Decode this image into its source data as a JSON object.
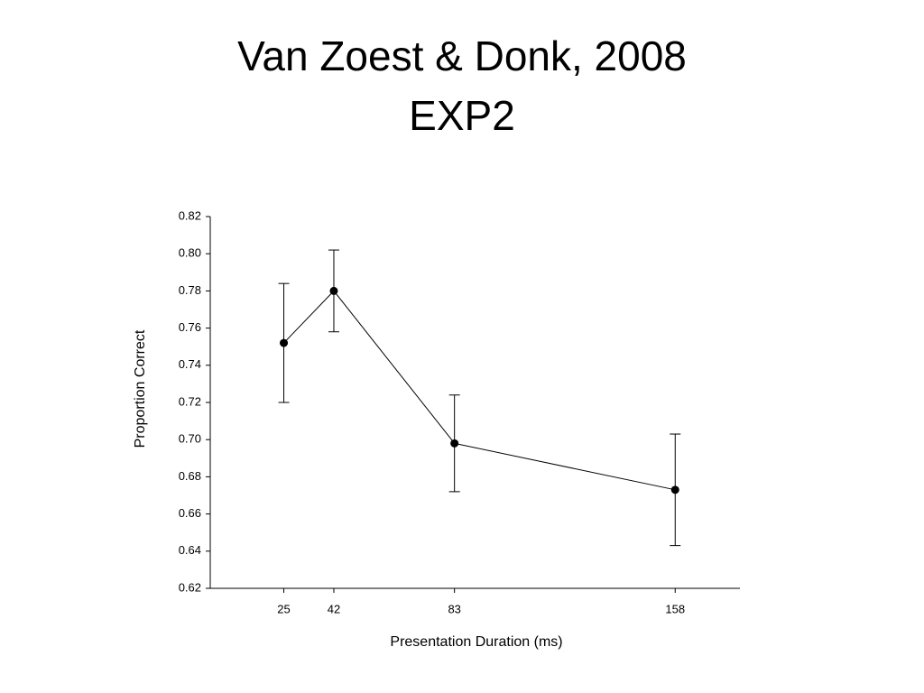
{
  "chart_data": {
    "type": "line",
    "title": "Van Zoest & Donk, 2008",
    "subtitle": "EXP2",
    "x_label": "Presentation Duration (ms)",
    "y_label": "Proportion Correct",
    "x": [
      25,
      42,
      83,
      158
    ],
    "values": [
      0.752,
      0.78,
      0.698,
      0.673
    ],
    "errors": [
      0.032,
      0.022,
      0.026,
      0.03
    ],
    "color": "#000000",
    "xlim": [
      0,
      180
    ],
    "xticks": [
      25,
      42,
      83,
      158
    ],
    "ylim": [
      0.62,
      0.82
    ],
    "yticks": [
      0.62,
      0.64,
      0.66,
      0.68,
      {
        "value": 0.7,
        "label": "0.70"
      },
      0.72,
      0.74,
      0.76,
      0.78,
      {
        "value": 0.8,
        "label": "0.80"
      },
      0.82
    ],
    "grid": false
  }
}
